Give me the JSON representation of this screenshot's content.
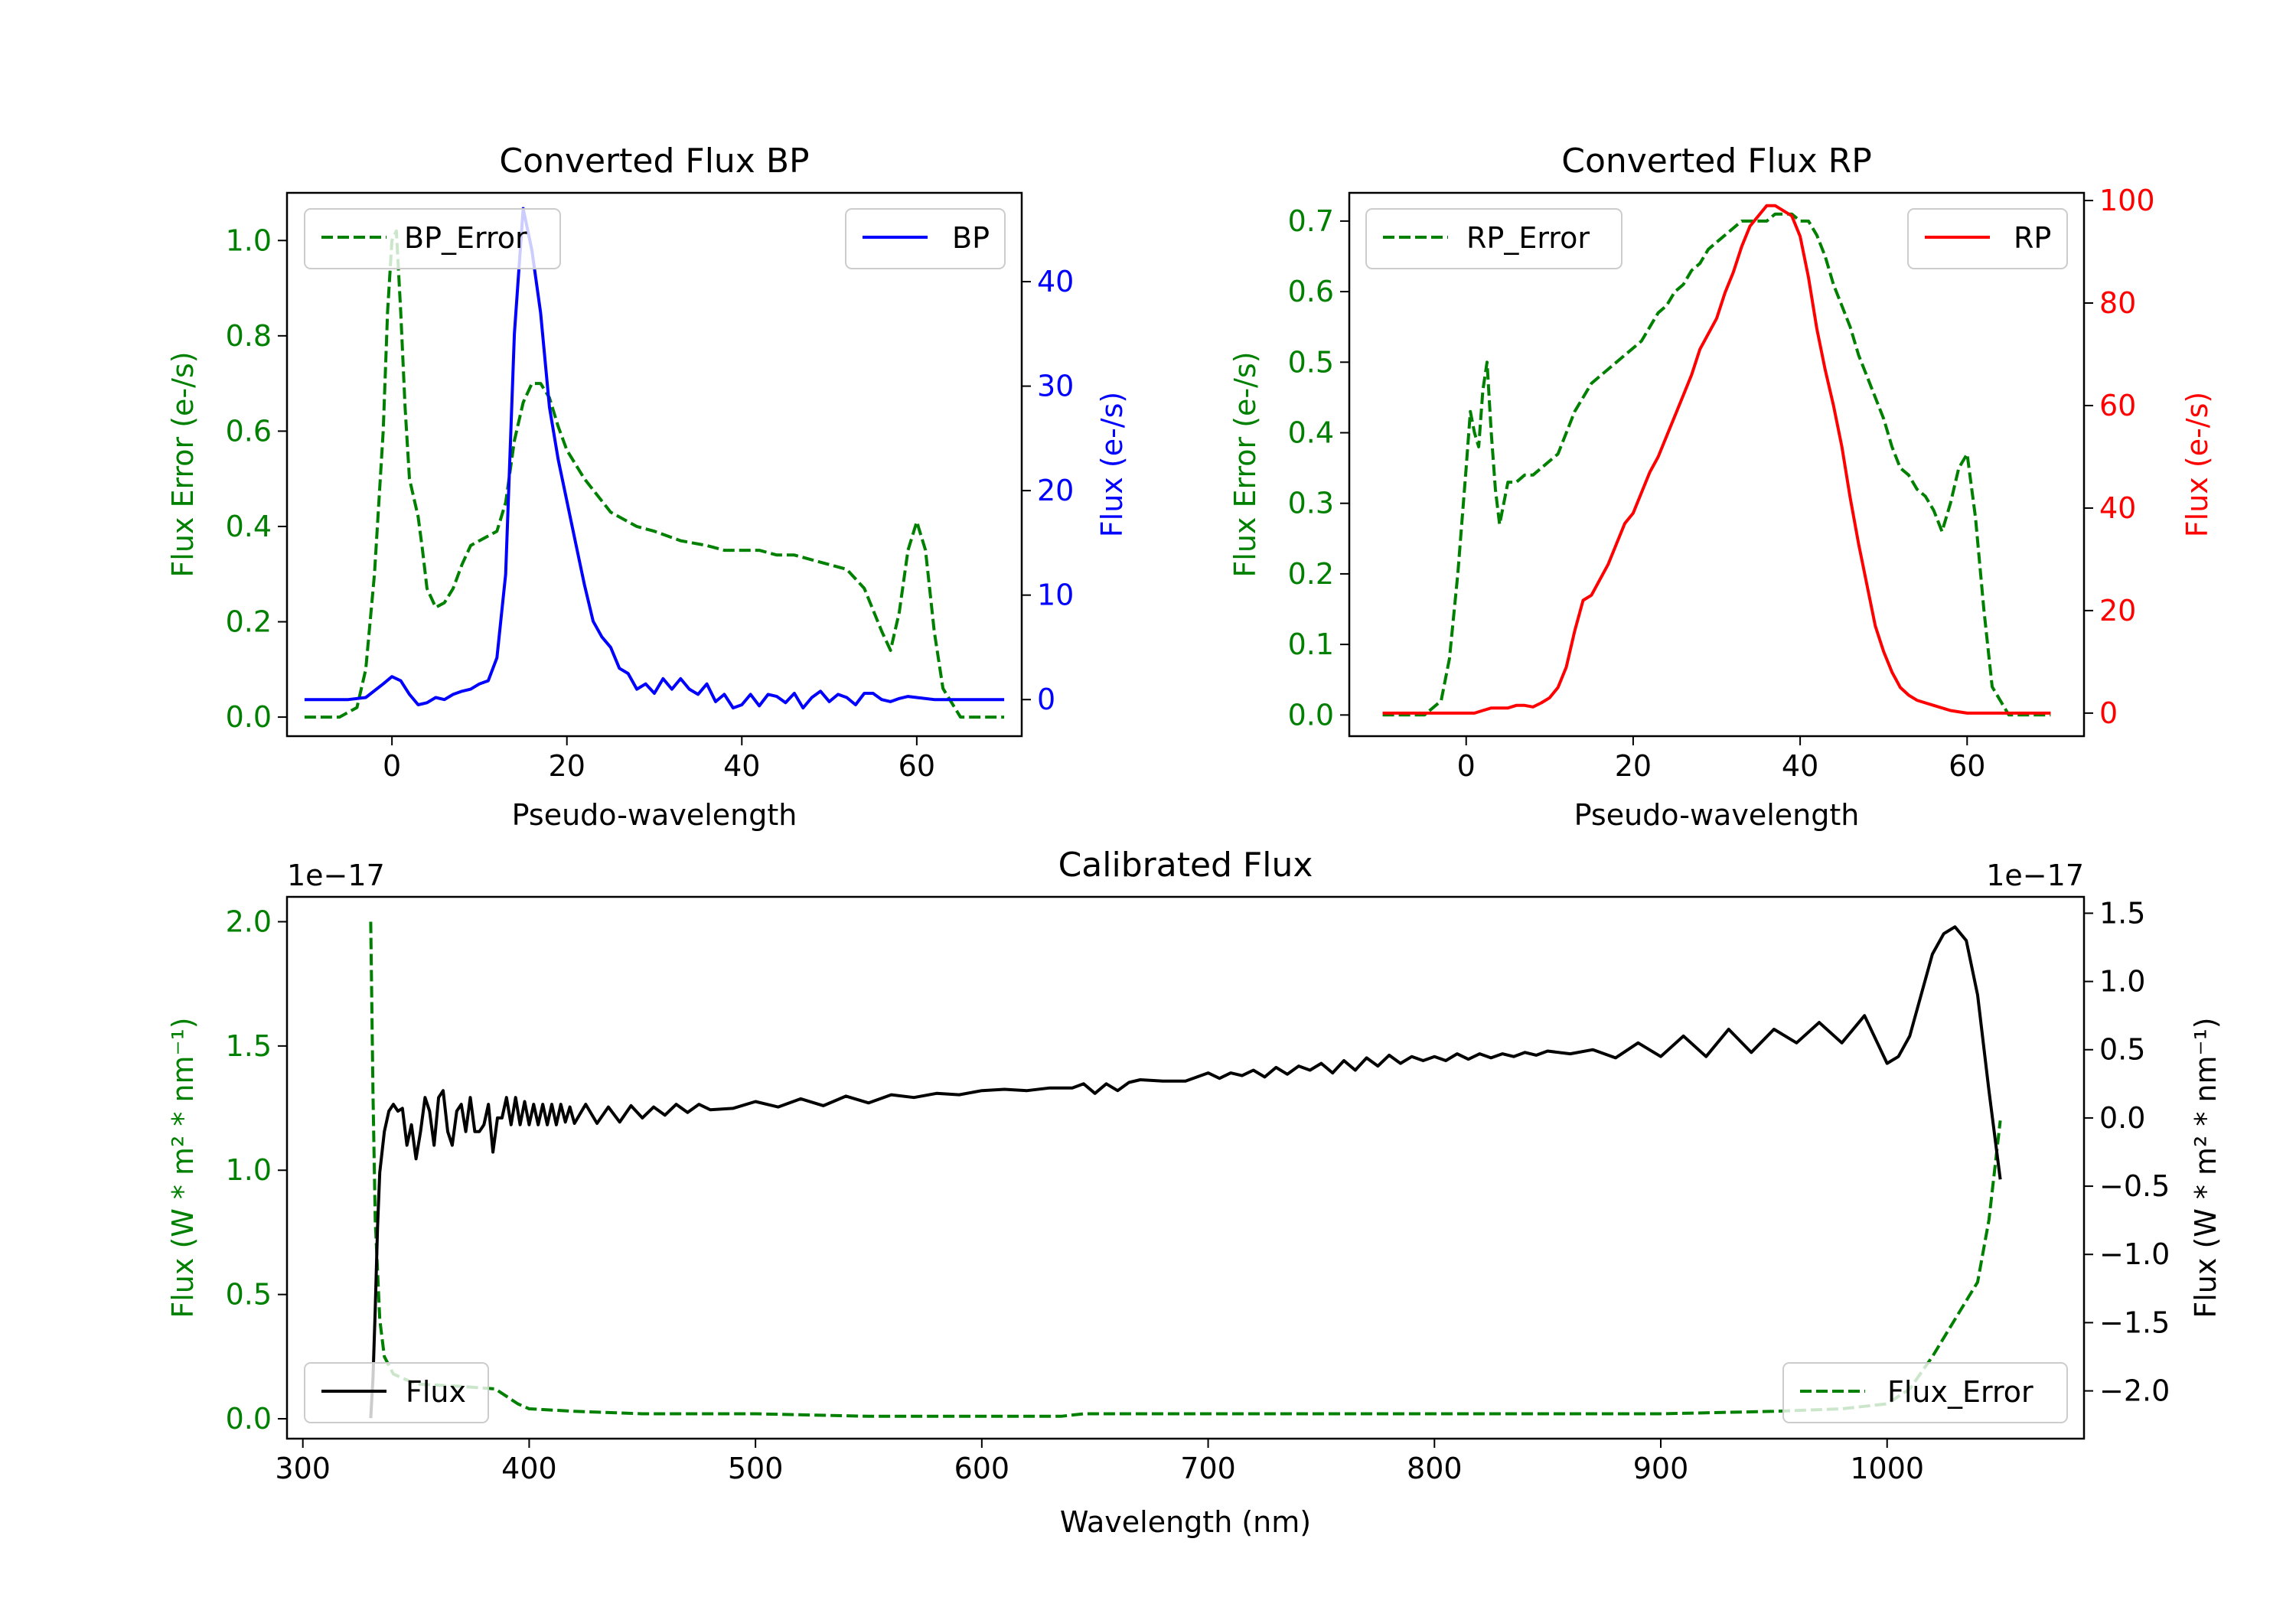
{
  "chart_data": [
    {
      "type": "line",
      "title": "Converted Flux BP",
      "xlabel": "Pseudo-wavelength",
      "ylabel_left": "Flux Error (e-/s)",
      "ylabel_right": "Flux (e-/s)",
      "xlim": [
        -12,
        72
      ],
      "ylim_left": [
        -0.04,
        1.1
      ],
      "ylim_right": [
        -3.5,
        48.5
      ],
      "xticks": [
        0,
        20,
        40,
        60
      ],
      "yticks_left": [
        0.0,
        0.2,
        0.4,
        0.6,
        0.8,
        1.0
      ],
      "yticks_right": [
        0,
        10,
        20,
        30,
        40
      ],
      "legend_left_label": "BP_Error",
      "legend_right_label": "BP",
      "left_color": "#008000",
      "right_color": "#0000ff",
      "series": [
        {
          "name": "BP_Error",
          "axis": "left",
          "style": "dashed",
          "color": "#008000",
          "x": [
            -10,
            -6,
            -4,
            -3,
            -2,
            -1,
            -0.5,
            0,
            0.5,
            1,
            1.5,
            2,
            3,
            3.5,
            4,
            5,
            6,
            7,
            8,
            9,
            10,
            11,
            12,
            13,
            14,
            15,
            16,
            17,
            18,
            19,
            20,
            22,
            25,
            28,
            30,
            33,
            36,
            38,
            40,
            42,
            44,
            46,
            48,
            50,
            52,
            54,
            56,
            57,
            58,
            59,
            60,
            61,
            62,
            63,
            65,
            70
          ],
          "y": [
            0.0,
            0.0,
            0.02,
            0.1,
            0.3,
            0.6,
            0.85,
            1.0,
            1.02,
            0.85,
            0.65,
            0.5,
            0.42,
            0.35,
            0.27,
            0.23,
            0.24,
            0.27,
            0.32,
            0.36,
            0.37,
            0.38,
            0.39,
            0.45,
            0.58,
            0.66,
            0.7,
            0.7,
            0.67,
            0.61,
            0.56,
            0.5,
            0.43,
            0.4,
            0.39,
            0.37,
            0.36,
            0.35,
            0.35,
            0.35,
            0.34,
            0.34,
            0.33,
            0.32,
            0.31,
            0.27,
            0.18,
            0.14,
            0.22,
            0.35,
            0.41,
            0.35,
            0.18,
            0.06,
            0.0,
            0.0
          ]
        },
        {
          "name": "BP",
          "axis": "right",
          "style": "solid",
          "color": "#0000ff",
          "x": [
            -10,
            -5,
            -3,
            -1,
            0,
            1,
            2,
            3,
            4,
            5,
            6,
            7,
            8,
            9,
            10,
            11,
            12,
            13,
            14,
            15,
            16,
            17,
            18,
            19,
            20,
            21,
            22,
            23,
            24,
            25,
            26,
            27,
            28,
            29,
            30,
            31,
            32,
            33,
            34,
            35,
            36,
            37,
            38,
            39,
            40,
            41,
            42,
            43,
            44,
            45,
            46,
            47,
            48,
            49,
            50,
            51,
            52,
            53,
            54,
            55,
            56,
            57,
            58,
            59,
            60,
            62,
            65,
            70
          ],
          "y": [
            0,
            0,
            0.2,
            1.5,
            2.2,
            1.8,
            0.5,
            -0.5,
            -0.3,
            0.2,
            0.0,
            0.5,
            0.8,
            1.0,
            1.5,
            1.8,
            4,
            12,
            35,
            47,
            43,
            37,
            28,
            23,
            19,
            15,
            11,
            7.5,
            6,
            5,
            3,
            2.5,
            1,
            1.5,
            0.6,
            2,
            1,
            2,
            1,
            0.5,
            1.5,
            -0.2,
            0.5,
            -0.8,
            -0.5,
            0.5,
            -0.6,
            0.5,
            0.3,
            -0.3,
            0.6,
            -0.8,
            0.2,
            0.8,
            -0.2,
            0.5,
            0.2,
            -0.5,
            0.6,
            0.6,
            0.0,
            -0.2,
            0.1,
            0.3,
            0.2,
            0,
            0,
            0
          ]
        }
      ]
    },
    {
      "type": "line",
      "title": "Converted Flux RP",
      "xlabel": "Pseudo-wavelength",
      "ylabel_left": "Flux Error (e-/s)",
      "ylabel_right": "Flux (e-/s)",
      "xlim": [
        -14,
        74
      ],
      "ylim_left": [
        -0.03,
        0.74
      ],
      "ylim_right": [
        -4.5,
        101.5
      ],
      "xticks": [
        0,
        20,
        40,
        60
      ],
      "yticks_left": [
        0.0,
        0.1,
        0.2,
        0.3,
        0.4,
        0.5,
        0.6,
        0.7
      ],
      "yticks_right": [
        0,
        20,
        40,
        60,
        80,
        100
      ],
      "legend_left_label": "RP_Error",
      "legend_right_label": "RP",
      "left_color": "#008000",
      "right_color": "#ff0000",
      "series": [
        {
          "name": "RP_Error",
          "axis": "left",
          "style": "dashed",
          "color": "#008000",
          "x": [
            -10,
            -5,
            -3,
            -2,
            -1,
            0,
            0.5,
            1,
            1.5,
            2,
            2.5,
            3,
            3.5,
            4,
            5,
            6,
            7,
            8,
            9,
            10,
            11,
            12,
            13,
            14,
            15,
            17,
            19,
            20,
            21,
            22,
            23,
            24,
            25,
            26,
            27,
            28,
            29,
            30,
            31,
            32,
            33,
            34,
            35,
            36,
            37,
            38,
            39,
            40,
            41,
            42,
            43,
            44,
            45,
            46,
            47,
            48,
            49,
            50,
            51,
            52,
            53,
            54,
            55,
            56,
            57,
            58,
            59,
            60,
            61,
            62,
            63,
            65,
            70
          ],
          "y": [
            0.0,
            0.0,
            0.02,
            0.08,
            0.2,
            0.35,
            0.43,
            0.4,
            0.38,
            0.46,
            0.5,
            0.4,
            0.32,
            0.27,
            0.33,
            0.33,
            0.34,
            0.34,
            0.35,
            0.36,
            0.37,
            0.4,
            0.43,
            0.45,
            0.47,
            0.49,
            0.51,
            0.52,
            0.53,
            0.55,
            0.57,
            0.58,
            0.6,
            0.61,
            0.63,
            0.64,
            0.66,
            0.67,
            0.68,
            0.69,
            0.7,
            0.7,
            0.7,
            0.7,
            0.71,
            0.71,
            0.71,
            0.7,
            0.7,
            0.68,
            0.65,
            0.61,
            0.58,
            0.55,
            0.51,
            0.48,
            0.45,
            0.42,
            0.38,
            0.35,
            0.34,
            0.32,
            0.31,
            0.29,
            0.26,
            0.3,
            0.35,
            0.37,
            0.28,
            0.15,
            0.04,
            0.0,
            0.0
          ]
        },
        {
          "name": "RP",
          "axis": "right",
          "style": "solid",
          "color": "#ff0000",
          "x": [
            -10,
            -5,
            -2,
            0,
            1,
            2,
            3,
            4,
            5,
            6,
            7,
            8,
            9,
            10,
            11,
            12,
            13,
            14,
            15,
            16,
            17,
            18,
            19,
            20,
            21,
            22,
            23,
            24,
            25,
            26,
            27,
            28,
            29,
            30,
            31,
            32,
            33,
            34,
            35,
            36,
            37,
            38,
            39,
            40,
            41,
            42,
            43,
            44,
            45,
            46,
            47,
            48,
            49,
            50,
            51,
            52,
            53,
            54,
            55,
            56,
            58,
            60,
            65,
            70
          ],
          "y": [
            0,
            0,
            0,
            0,
            0,
            0.5,
            1,
            1,
            1,
            1.5,
            1.5,
            1.2,
            2,
            3,
            5,
            9,
            16,
            22,
            23,
            26,
            29,
            33,
            37,
            39,
            43,
            47,
            50,
            54,
            58,
            62,
            66,
            71,
            74,
            77,
            82,
            86,
            91,
            95,
            97,
            99,
            99,
            98,
            97,
            93,
            85,
            75,
            67,
            60,
            52,
            42,
            33,
            25,
            17,
            12,
            8,
            5,
            3.5,
            2.5,
            2,
            1.5,
            0.5,
            0,
            0,
            0
          ]
        }
      ]
    },
    {
      "type": "line",
      "title": "Calibrated Flux",
      "xlabel": "Wavelength (nm)",
      "ylabel_left": "Flux (W * m² * nm⁻¹)",
      "ylabel_right": "Flux (W * m² * nm⁻¹)",
      "offset_left": "1e−17",
      "offset_right": "1e−17",
      "xlim": [
        293,
        1087
      ],
      "ylim_left": [
        -0.08,
        2.1
      ],
      "ylim_right": [
        -2.35,
        1.62
      ],
      "xticks": [
        300,
        400,
        500,
        600,
        700,
        800,
        900,
        1000
      ],
      "yticks_left": [
        0.0,
        0.5,
        1.0,
        1.5,
        2.0
      ],
      "yticks_right": [
        -2.0,
        -1.5,
        -1.0,
        -0.5,
        0.0,
        0.5,
        1.0,
        1.5
      ],
      "legend_left_label": "Flux",
      "legend_right_label": "Flux_Error",
      "left_color": "#008000",
      "right_color": "#000000",
      "series": [
        {
          "name": "Flux_Error",
          "axis": "left",
          "style": "dashed",
          "color": "#008000",
          "x": [
            330,
            331,
            332,
            334,
            336,
            340,
            350,
            370,
            385,
            395,
            400,
            420,
            450,
            500,
            550,
            600,
            635,
            645,
            700,
            800,
            900,
            950,
            980,
            1000,
            1010,
            1020,
            1030,
            1040,
            1045,
            1050
          ],
          "y": [
            2.0,
            1.3,
            0.8,
            0.4,
            0.25,
            0.18,
            0.14,
            0.13,
            0.12,
            0.06,
            0.04,
            0.03,
            0.02,
            0.02,
            0.01,
            0.01,
            0.01,
            0.02,
            0.02,
            0.02,
            0.02,
            0.03,
            0.04,
            0.06,
            0.12,
            0.25,
            0.4,
            0.55,
            0.8,
            1.2
          ]
        },
        {
          "name": "Flux",
          "axis": "right",
          "style": "solid",
          "color": "#000000",
          "x": [
            330,
            331,
            332,
            333,
            334,
            336,
            338,
            340,
            342,
            344,
            346,
            348,
            350,
            352,
            354,
            356,
            358,
            360,
            362,
            364,
            366,
            368,
            370,
            372,
            374,
            376,
            378,
            380,
            382,
            384,
            386,
            388,
            390,
            392,
            394,
            396,
            398,
            400,
            402,
            404,
            406,
            408,
            410,
            412,
            414,
            416,
            418,
            420,
            425,
            430,
            435,
            440,
            445,
            450,
            455,
            460,
            465,
            470,
            475,
            480,
            490,
            500,
            510,
            520,
            530,
            540,
            550,
            560,
            570,
            580,
            590,
            600,
            610,
            620,
            630,
            640,
            645,
            650,
            655,
            660,
            665,
            670,
            680,
            690,
            700,
            705,
            710,
            715,
            720,
            725,
            730,
            735,
            740,
            745,
            750,
            755,
            760,
            765,
            770,
            775,
            780,
            785,
            790,
            795,
            800,
            805,
            810,
            815,
            820,
            825,
            830,
            835,
            840,
            845,
            850,
            860,
            870,
            880,
            890,
            900,
            910,
            920,
            930,
            940,
            950,
            960,
            970,
            980,
            990,
            1000,
            1005,
            1010,
            1015,
            1020,
            1025,
            1030,
            1035,
            1040,
            1045,
            1050
          ],
          "y": [
            -2.2,
            -1.9,
            -1.4,
            -0.8,
            -0.4,
            -0.1,
            0.05,
            0.1,
            0.05,
            0.07,
            -0.2,
            -0.05,
            -0.3,
            -0.1,
            0.15,
            0.05,
            -0.2,
            0.15,
            0.2,
            -0.1,
            -0.2,
            0.05,
            0.1,
            -0.1,
            0.15,
            -0.1,
            -0.1,
            -0.05,
            0.1,
            -0.25,
            0.0,
            0.0,
            0.15,
            -0.05,
            0.15,
            -0.05,
            0.12,
            -0.05,
            0.1,
            -0.05,
            0.1,
            -0.05,
            0.1,
            -0.05,
            0.1,
            -0.03,
            0.08,
            -0.04,
            0.1,
            -0.04,
            0.08,
            -0.03,
            0.09,
            0.0,
            0.08,
            0.02,
            0.1,
            0.04,
            0.1,
            0.06,
            0.07,
            0.12,
            0.08,
            0.14,
            0.09,
            0.16,
            0.11,
            0.17,
            0.15,
            0.18,
            0.17,
            0.2,
            0.21,
            0.2,
            0.22,
            0.22,
            0.25,
            0.18,
            0.25,
            0.2,
            0.26,
            0.28,
            0.27,
            0.27,
            0.33,
            0.29,
            0.33,
            0.31,
            0.35,
            0.3,
            0.37,
            0.32,
            0.38,
            0.35,
            0.4,
            0.33,
            0.42,
            0.35,
            0.44,
            0.38,
            0.46,
            0.4,
            0.45,
            0.42,
            0.45,
            0.42,
            0.47,
            0.43,
            0.47,
            0.44,
            0.47,
            0.45,
            0.48,
            0.46,
            0.49,
            0.47,
            0.5,
            0.44,
            0.55,
            0.45,
            0.6,
            0.45,
            0.65,
            0.48,
            0.65,
            0.55,
            0.7,
            0.55,
            0.75,
            0.4,
            0.45,
            0.6,
            0.9,
            1.2,
            1.35,
            1.4,
            1.3,
            0.9,
            0.2,
            -0.45
          ]
        }
      ]
    }
  ]
}
